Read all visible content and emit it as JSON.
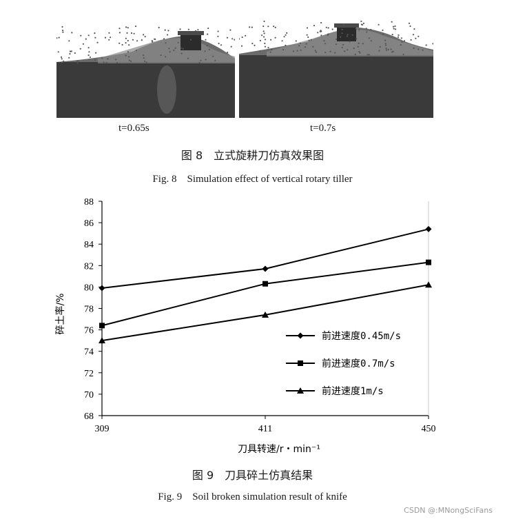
{
  "figure8": {
    "panels": [
      {
        "time_label": "t=0.65s"
      },
      {
        "time_label": "t=0.7s"
      }
    ],
    "caption_cn": "图 8　立式旋耕刀仿真效果图",
    "caption_en": "Fig. 8　Simulation effect of vertical rotary tiller"
  },
  "figure9": {
    "caption_cn": "图 9　刀具碎土仿真结果",
    "caption_en": "Fig. 9　Soil broken simulation result of knife"
  },
  "chart_data": {
    "type": "line",
    "categories": [
      "309",
      "411",
      "450"
    ],
    "series": [
      {
        "name": "前进速度0.45m/s",
        "marker": "diamond",
        "values": [
          79.9,
          81.7,
          85.4
        ]
      },
      {
        "name": "前进速度0.7m/s",
        "marker": "square",
        "values": [
          76.4,
          80.3,
          82.3
        ]
      },
      {
        "name": "前进速度1m/s",
        "marker": "triangle",
        "values": [
          75.0,
          77.4,
          80.2
        ]
      }
    ],
    "xlabel": "刀具转速/r・min⁻¹",
    "ylabel": "碎土率/%",
    "ylim": [
      68,
      88
    ],
    "yticks": [
      68,
      70,
      72,
      74,
      76,
      78,
      80,
      82,
      84,
      86,
      88
    ],
    "legend_position": "bottom-right",
    "line_color": "#000000"
  },
  "watermark": "CSDN @:MNongSciFans"
}
